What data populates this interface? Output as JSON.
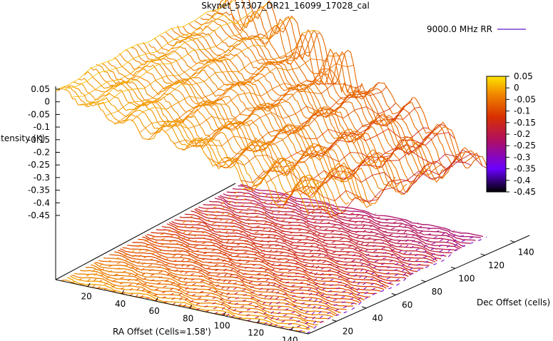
{
  "chart_data": {
    "type": "surface3d",
    "title": "Skynet_57307_DR21_16099_17028_cal",
    "zlabel": "Intensity (K)",
    "xlabel": "RA Offset (Cells=1.58')",
    "ylabel": "Dec Offset (cells)",
    "legend": {
      "series_name": "9000.0 MHz RR",
      "placement": "top-right"
    },
    "z_ticks": [
      "0.05",
      "0",
      "-0.05",
      "-0.1",
      "-0.15",
      "-0.2",
      "-0.25",
      "-0.3",
      "-0.35",
      "-0.4",
      "-0.45"
    ],
    "x_ticks": [
      "20",
      "40",
      "60",
      "80",
      "100",
      "120",
      "140"
    ],
    "y_ticks": [
      "20",
      "40",
      "60",
      "80",
      "100",
      "120",
      "140"
    ],
    "colorbar": {
      "ticks": [
        "0.05",
        "0",
        "-0.05",
        "-0.1",
        "-0.15",
        "-0.2",
        "-0.25",
        "-0.3",
        "-0.35",
        "-0.4",
        "-0.45"
      ],
      "range": [
        -0.45,
        0.05
      ]
    },
    "zlim": [
      -0.45,
      0.05
    ],
    "xlim": [
      1,
      150
    ],
    "ylim": [
      1,
      150
    ],
    "surface_style": "hidden-line mesh with contour projection on base",
    "colormap": "black-purple-red-orange-yellow"
  }
}
